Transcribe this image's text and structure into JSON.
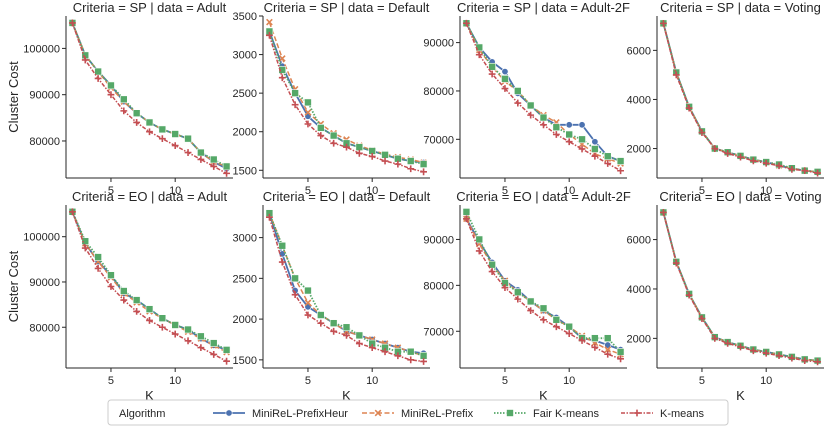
{
  "chart_data": {
    "type": "line",
    "colors": {
      "MiniReL-PrefixHeur": "#4c72b0",
      "MiniReL-Prefix": "#dd8452",
      "Fair K-means": "#55a868",
      "K-means": "#c44e52"
    },
    "xlabel": "K",
    "ylabel": "Cluster Cost",
    "x": [
      2,
      3,
      4,
      5,
      6,
      7,
      8,
      9,
      10,
      11,
      12,
      13,
      14
    ],
    "legend": {
      "title": "Algorithm",
      "entries": [
        "MiniReL-PrefixHeur",
        "MiniReL-Prefix",
        "Fair K-means",
        "K-means"
      ],
      "position": "bottom-center"
    },
    "panels": [
      {
        "title": "Criteria = SP | data = Adult",
        "ylim": [
          72000,
          107000
        ],
        "yticks": [
          80000,
          90000,
          100000
        ],
        "ytick_labels": [
          "80000",
          "90000",
          "100000"
        ],
        "xticks": [
          5,
          10
        ],
        "xtick_labels": [
          "5",
          "10"
        ],
        "series": [
          {
            "name": "MiniReL-PrefixHeur",
            "values": [
              105500,
              98500,
              95000,
              92000,
              88500,
              86000,
              84000,
              82500,
              81500,
              80500,
              77500,
              75500,
              74000
            ]
          },
          {
            "name": "MiniReL-Prefix",
            "values": [
              105500,
              98500,
              95000,
              91500,
              88500,
              86000,
              84000,
              82500,
              81500,
              80500,
              77500,
              75500,
              74500
            ]
          },
          {
            "name": "Fair K-means",
            "values": [
              105500,
              98500,
              95000,
              92000,
              89000,
              86000,
              84000,
              82500,
              81500,
              80500,
              77500,
              76000,
              74500
            ]
          },
          {
            "name": "K-means",
            "values": [
              105500,
              97500,
              93500,
              90000,
              86500,
              84000,
              82000,
              80500,
              79000,
              77500,
              76000,
              74500,
              73000
            ]
          }
        ]
      },
      {
        "title": "Criteria = SP | data = Default",
        "ylim": [
          1400,
          3500
        ],
        "yticks": [
          1500,
          2000,
          2500,
          3000,
          3500
        ],
        "ytick_labels": [
          "1500",
          "2000",
          "2500",
          "3000",
          "3500"
        ],
        "xticks": [
          5,
          10
        ],
        "xtick_labels": [
          "5",
          "10"
        ],
        "series": [
          {
            "name": "MiniReL-PrefixHeur",
            "values": [
              3300,
              2850,
              2500,
              2200,
              2050,
              1950,
              1850,
              1800,
              1750,
              1700,
              1650,
              1620,
              1600
            ]
          },
          {
            "name": "MiniReL-Prefix",
            "values": [
              3420,
              2950,
              2550,
              2250,
              2100,
              1980,
              1900,
              1820,
              1760,
              1710,
              1670,
              1640,
              1600
            ]
          },
          {
            "name": "Fair K-means",
            "values": [
              3300,
              2800,
              2500,
              2380,
              2050,
              1950,
              1850,
              1800,
              1750,
              1700,
              1650,
              1620,
              1580
            ]
          },
          {
            "name": "K-means",
            "values": [
              3250,
              2700,
              2350,
              2100,
              1950,
              1850,
              1800,
              1720,
              1680,
              1620,
              1580,
              1520,
              1480
            ]
          }
        ]
      },
      {
        "title": "Criteria = SP | data = Adult-2F",
        "ylim": [
          62000,
          95500
        ],
        "yticks": [
          70000,
          80000,
          90000
        ],
        "ytick_labels": [
          "70000",
          "80000",
          "90000"
        ],
        "xticks": [
          5,
          10
        ],
        "xtick_labels": [
          "5",
          "10"
        ],
        "series": [
          {
            "name": "MiniReL-PrefixHeur",
            "values": [
              94000,
              89000,
              86000,
              84000,
              79500,
              77000,
              74500,
              73000,
              73000,
              73000,
              69500,
              66500,
              65500
            ]
          },
          {
            "name": "MiniReL-Prefix",
            "values": [
              94000,
              88500,
              85000,
              82000,
              80000,
              77000,
              75000,
              73500,
              71000,
              69000,
              67000,
              66000,
              65000
            ]
          },
          {
            "name": "Fair K-means",
            "values": [
              94000,
              89000,
              85000,
              82500,
              80000,
              77000,
              74500,
              72500,
              71000,
              70000,
              68000,
              66500,
              65500
            ]
          },
          {
            "name": "K-means",
            "values": [
              94000,
              87500,
              83500,
              80500,
              77500,
              75000,
              73000,
              71000,
              69500,
              68000,
              66500,
              65000,
              63500
            ]
          }
        ]
      },
      {
        "title": "Criteria = SP | data = Voting",
        "ylim": [
          800,
          7400
        ],
        "yticks": [
          2000,
          4000,
          6000
        ],
        "ytick_labels": [
          "2000",
          "4000",
          "6000"
        ],
        "xticks": [
          5,
          10
        ],
        "xtick_labels": [
          "5",
          "10"
        ],
        "series": [
          {
            "name": "MiniReL-PrefixHeur",
            "values": [
              7100,
              5100,
              3700,
              2700,
              2000,
              1850,
              1700,
              1550,
              1450,
              1300,
              1200,
              1100,
              1050
            ]
          },
          {
            "name": "MiniReL-Prefix",
            "values": [
              7100,
              5100,
              3700,
              2700,
              2000,
              1850,
              1700,
              1550,
              1450,
              1300,
              1200,
              1100,
              1050
            ]
          },
          {
            "name": "Fair K-means",
            "values": [
              7100,
              5100,
              3700,
              2700,
              2000,
              1850,
              1700,
              1550,
              1450,
              1350,
              1200,
              1100,
              1050
            ]
          },
          {
            "name": "K-means",
            "values": [
              7100,
              5000,
              3650,
              2650,
              2000,
              1800,
              1650,
              1500,
              1400,
              1300,
              1150,
              1100,
              1000
            ]
          }
        ]
      },
      {
        "title": "Criteria = EO | data = Adult",
        "ylim": [
          71000,
          107000
        ],
        "yticks": [
          80000,
          90000,
          100000
        ],
        "ytick_labels": [
          "80000",
          "90000",
          "100000"
        ],
        "xticks": [
          5,
          10
        ],
        "xtick_labels": [
          "5",
          "10"
        ],
        "series": [
          {
            "name": "MiniReL-PrefixHeur",
            "values": [
              105500,
              98500,
              94500,
              91500,
              87500,
              86000,
              84000,
              82000,
              80500,
              79500,
              77500,
              76000,
              75000
            ]
          },
          {
            "name": "MiniReL-Prefix",
            "values": [
              105500,
              98500,
              94500,
              91000,
              87500,
              85500,
              83500,
              82000,
              80500,
              79000,
              77500,
              76000,
              74500
            ]
          },
          {
            "name": "Fair K-means",
            "values": [
              105500,
              99000,
              95500,
              91500,
              88000,
              86000,
              84000,
              82000,
              80500,
              79500,
              78000,
              76500,
              75000
            ]
          },
          {
            "name": "K-means",
            "values": [
              105500,
              97500,
              93000,
              89000,
              86000,
              83500,
              81500,
              80000,
              78500,
              77000,
              75500,
              74000,
              72500
            ]
          }
        ]
      },
      {
        "title": "Criteria = EO | data = Default",
        "ylim": [
          1400,
          3400
        ],
        "yticks": [
          1500,
          2000,
          2500,
          3000
        ],
        "ytick_labels": [
          "1500",
          "2000",
          "2500",
          "3000"
        ],
        "xticks": [
          5,
          10
        ],
        "xtick_labels": [
          "5",
          "10"
        ],
        "series": [
          {
            "name": "MiniReL-PrefixHeur",
            "values": [
              3300,
              2800,
              2350,
              2150,
              2050,
              1950,
              1850,
              1800,
              1750,
              1700,
              1650,
              1600,
              1580
            ]
          },
          {
            "name": "MiniReL-Prefix",
            "values": [
              3300,
              2900,
              2500,
              2200,
              2050,
              1950,
              1850,
              1800,
              1750,
              1700,
              1650,
              1600,
              1550
            ]
          },
          {
            "name": "Fair K-means",
            "values": [
              3300,
              2900,
              2500,
              2350,
              2050,
              1950,
              1900,
              1800,
              1700,
              1650,
              1600,
              1600,
              1550
            ]
          },
          {
            "name": "K-means",
            "values": [
              3250,
              2700,
              2300,
              2050,
              1950,
              1850,
              1800,
              1700,
              1650,
              1600,
              1550,
              1500,
              1480
            ]
          }
        ]
      },
      {
        "title": "Criteria = EO | data = Adult-2F",
        "ylim": [
          62000,
          97500
        ],
        "yticks": [
          70000,
          80000,
          90000
        ],
        "ytick_labels": [
          "70000",
          "80000",
          "90000"
        ],
        "xticks": [
          5,
          10
        ],
        "xtick_labels": [
          "5",
          "10"
        ],
        "series": [
          {
            "name": "MiniReL-PrefixHeur",
            "values": [
              94500,
              89500,
              85000,
              81000,
              79000,
              76500,
              74500,
              73000,
              71000,
              68500,
              68000,
              67000,
              66000
            ]
          },
          {
            "name": "MiniReL-Prefix",
            "values": [
              94500,
              89000,
              84500,
              81000,
              78500,
              76500,
              74500,
              72500,
              71000,
              69000,
              67500,
              66000,
              65000
            ]
          },
          {
            "name": "Fair K-means",
            "values": [
              96000,
              90000,
              84500,
              80500,
              78500,
              76500,
              75000,
              72500,
              71000,
              68500,
              68500,
              68500,
              65500
            ]
          },
          {
            "name": "K-means",
            "values": [
              94500,
              87500,
              83000,
              79500,
              77000,
              74500,
              72500,
              71000,
              69500,
              68000,
              66500,
              65000,
              64000
            ]
          }
        ]
      },
      {
        "title": "Criteria = EO | data = Voting",
        "ylim": [
          800,
          7400
        ],
        "yticks": [
          2000,
          4000,
          6000
        ],
        "ytick_labels": [
          "2000",
          "4000",
          "6000"
        ],
        "xticks": [
          5,
          10
        ],
        "xtick_labels": [
          "5",
          "10"
        ],
        "series": [
          {
            "name": "MiniReL-PrefixHeur",
            "values": [
              7100,
              5100,
              3800,
              2850,
              2050,
              1850,
              1700,
              1550,
              1450,
              1350,
              1250,
              1150,
              1100
            ]
          },
          {
            "name": "MiniReL-Prefix",
            "values": [
              7100,
              5100,
              3800,
              2850,
              2050,
              1850,
              1700,
              1550,
              1450,
              1350,
              1250,
              1150,
              1100
            ]
          },
          {
            "name": "Fair K-means",
            "values": [
              7100,
              5100,
              3800,
              2850,
              2050,
              1850,
              1700,
              1550,
              1450,
              1350,
              1250,
              1150,
              1100
            ]
          },
          {
            "name": "K-means",
            "values": [
              7100,
              5050,
              3750,
              2800,
              2000,
              1800,
              1650,
              1500,
              1400,
              1300,
              1200,
              1100,
              1050
            ]
          }
        ]
      }
    ]
  }
}
